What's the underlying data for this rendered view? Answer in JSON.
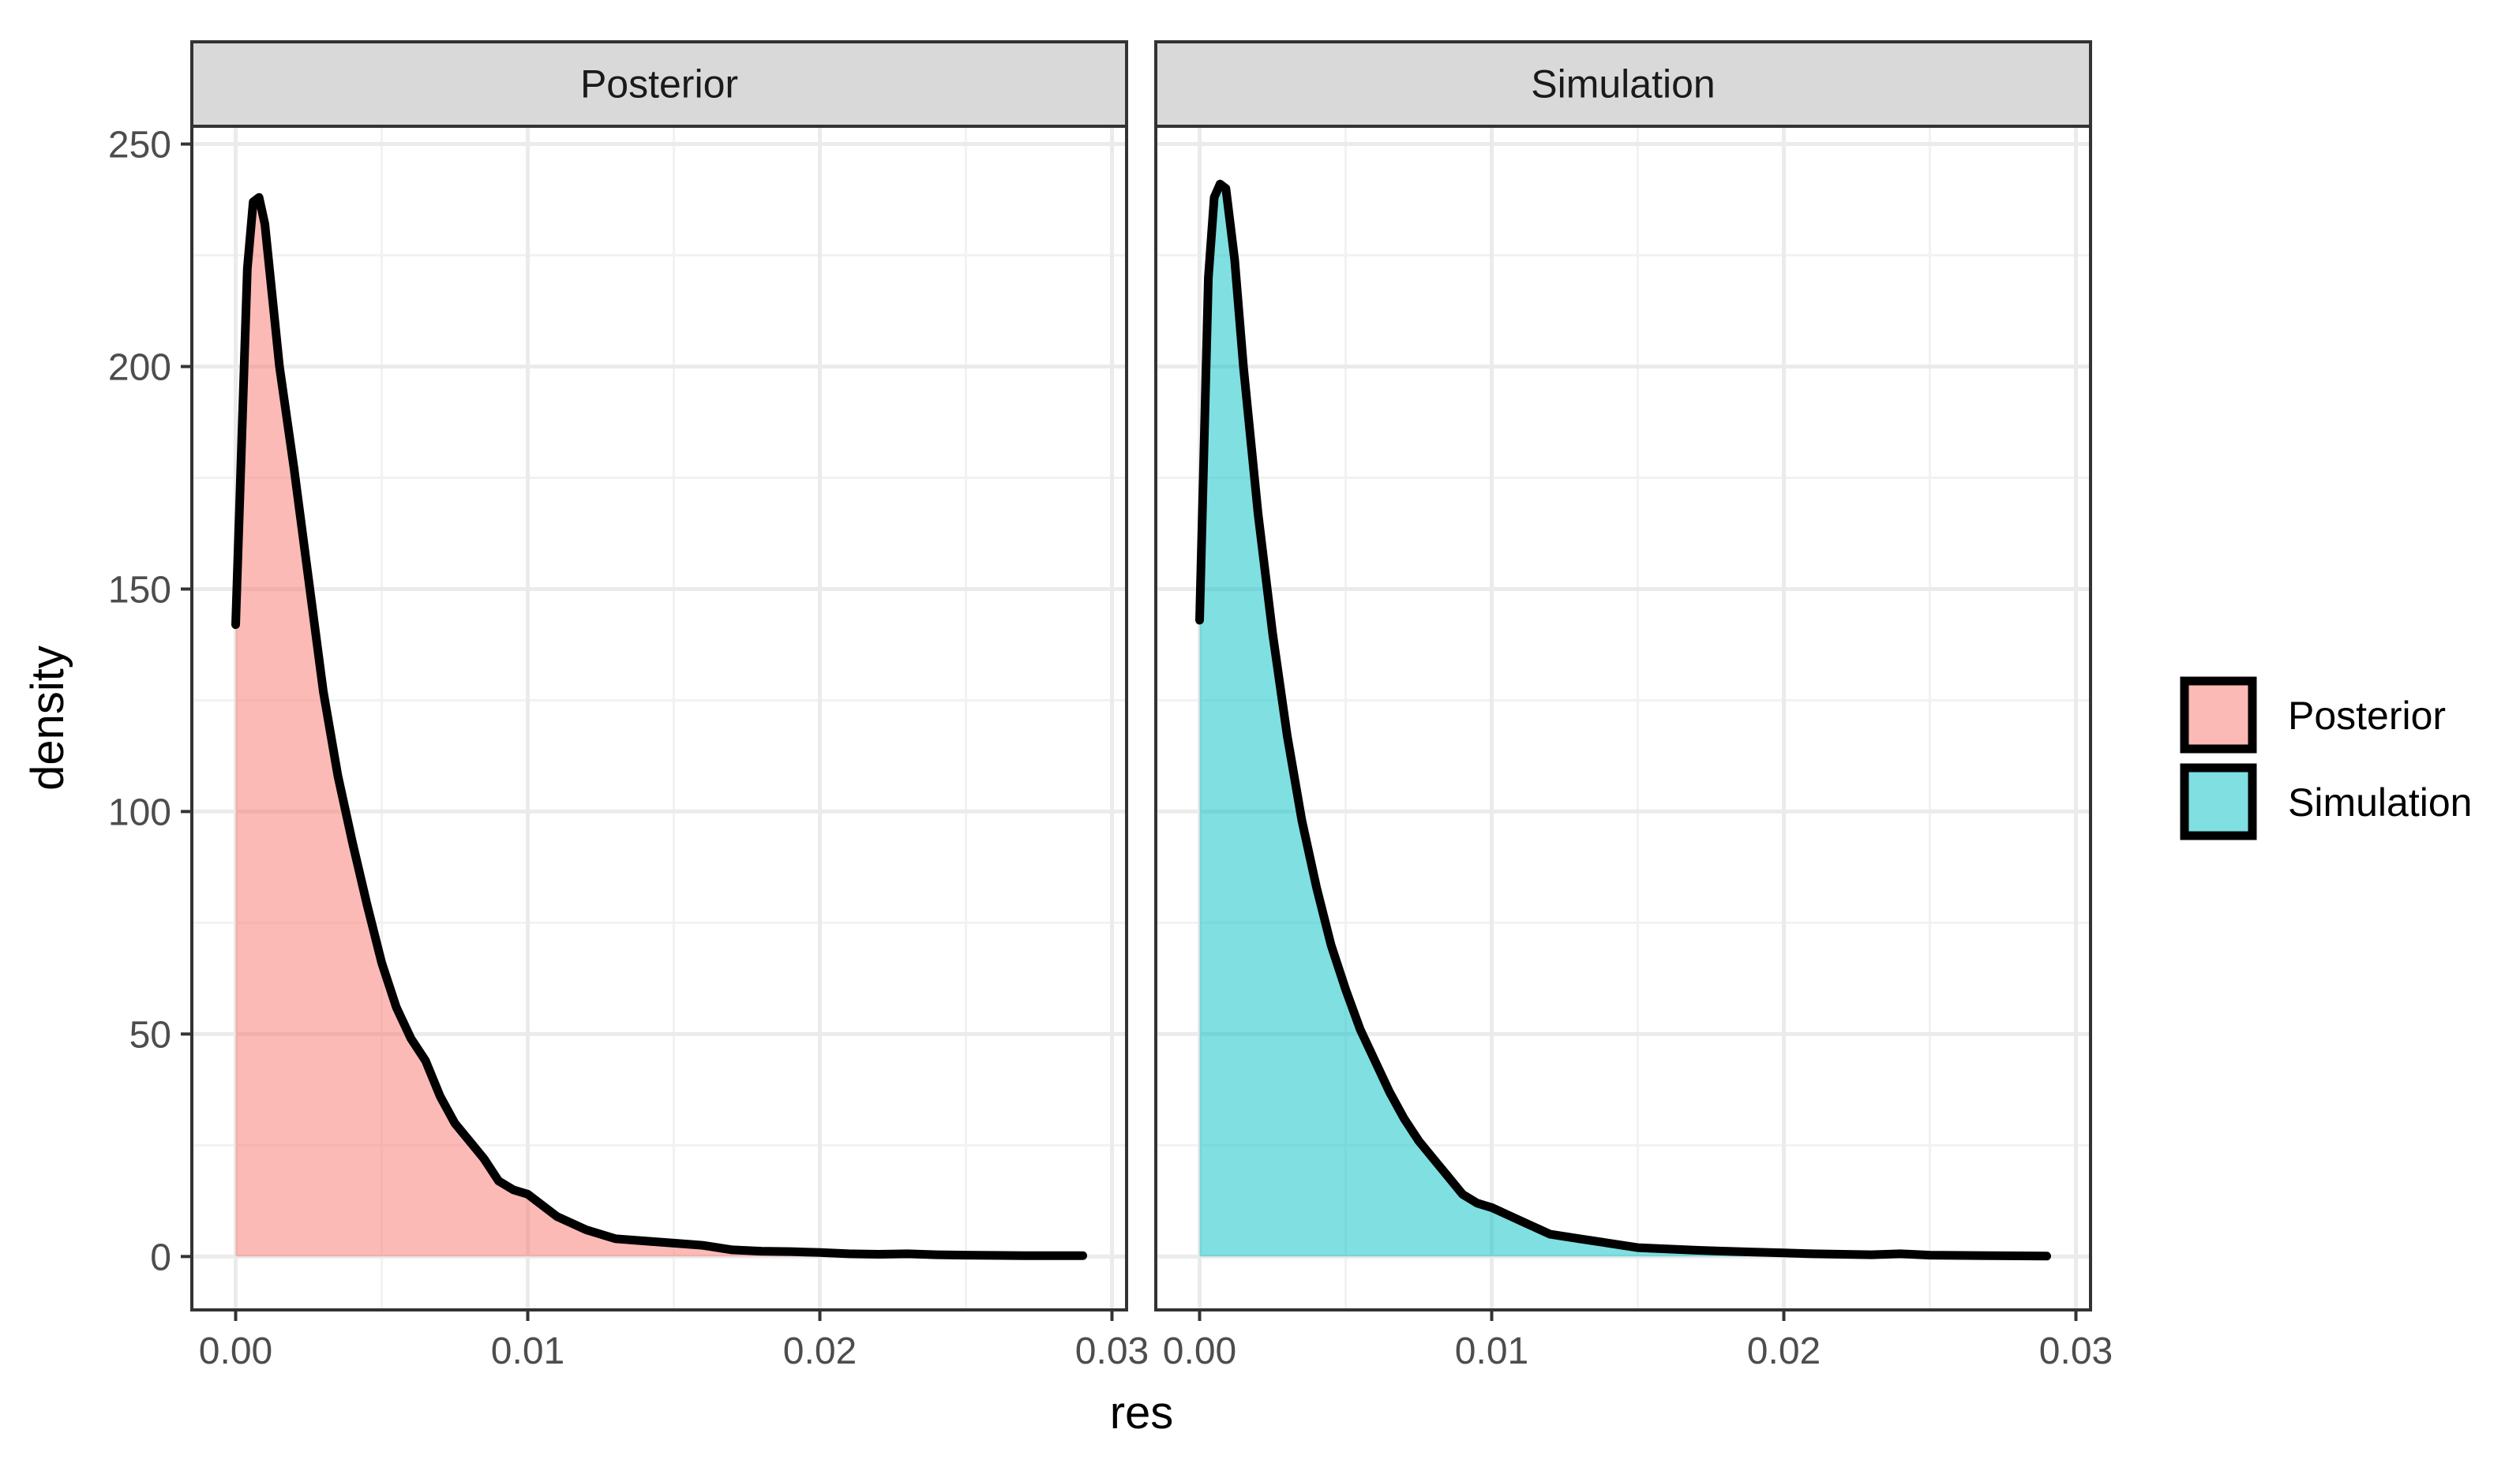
{
  "chart_data": {
    "type": "area",
    "x_axis": {
      "label": "res",
      "range": [
        -0.0015,
        0.0305
      ],
      "ticks": [
        0.0,
        0.01,
        0.02,
        0.03
      ],
      "tick_labels": [
        "0.00",
        "0.01",
        "0.02",
        "0.03"
      ]
    },
    "y_axis": {
      "label": "density",
      "range": [
        -12,
        254
      ],
      "ticks": [
        0,
        50,
        100,
        150,
        200,
        250
      ],
      "tick_labels": [
        "0",
        "50",
        "100",
        "150",
        "200",
        "250"
      ]
    },
    "grid": true,
    "legend_position": "right",
    "facets": [
      {
        "strip_label": "Posterior",
        "series_name": "Posterior",
        "fill": "#F8766D",
        "x": [
          0.0,
          0.0004,
          0.0006,
          0.0008,
          0.001,
          0.0015,
          0.002,
          0.0025,
          0.003,
          0.0035,
          0.004,
          0.0045,
          0.005,
          0.0055,
          0.006,
          0.0065,
          0.007,
          0.0075,
          0.008,
          0.0085,
          0.009,
          0.0095,
          0.01,
          0.011,
          0.012,
          0.013,
          0.014,
          0.015,
          0.016,
          0.017,
          0.018,
          0.019,
          0.02,
          0.021,
          0.022,
          0.023,
          0.024,
          0.025,
          0.027,
          0.029
        ],
        "y": [
          142,
          222,
          237,
          238,
          232,
          200,
          177,
          152,
          127,
          108,
          93,
          79,
          66,
          56,
          49,
          44,
          36,
          30,
          26,
          22,
          17,
          15,
          14,
          9,
          6,
          4,
          3.5,
          3,
          2.5,
          1.5,
          1.2,
          1.1,
          0.9,
          0.6,
          0.5,
          0.6,
          0.4,
          0.3,
          0.2,
          0.2
        ]
      },
      {
        "strip_label": "Simulation",
        "series_name": "Simulation",
        "fill": "#00BFC4",
        "x": [
          0.0,
          0.0003,
          0.0005,
          0.0007,
          0.0009,
          0.0012,
          0.0015,
          0.002,
          0.0025,
          0.003,
          0.0035,
          0.004,
          0.0045,
          0.005,
          0.0055,
          0.006,
          0.0065,
          0.007,
          0.0075,
          0.008,
          0.0085,
          0.009,
          0.0095,
          0.01,
          0.011,
          0.012,
          0.013,
          0.014,
          0.015,
          0.016,
          0.017,
          0.018,
          0.019,
          0.02,
          0.021,
          0.022,
          0.023,
          0.024,
          0.025,
          0.027,
          0.029
        ],
        "y": [
          143,
          220,
          238,
          241,
          240,
          224,
          200,
          167,
          140,
          117,
          98,
          83,
          70,
          60,
          51,
          44,
          37,
          31,
          26,
          22,
          18,
          14,
          12,
          11,
          8,
          5,
          4,
          3,
          2,
          1.7,
          1.4,
          1.2,
          1.0,
          0.8,
          0.6,
          0.5,
          0.4,
          0.6,
          0.3,
          0.2,
          0.1
        ]
      }
    ],
    "legend": {
      "entries": [
        {
          "label": "Posterior",
          "fill": "#F8766D"
        },
        {
          "label": "Simulation",
          "fill": "#00BFC4"
        }
      ]
    }
  }
}
